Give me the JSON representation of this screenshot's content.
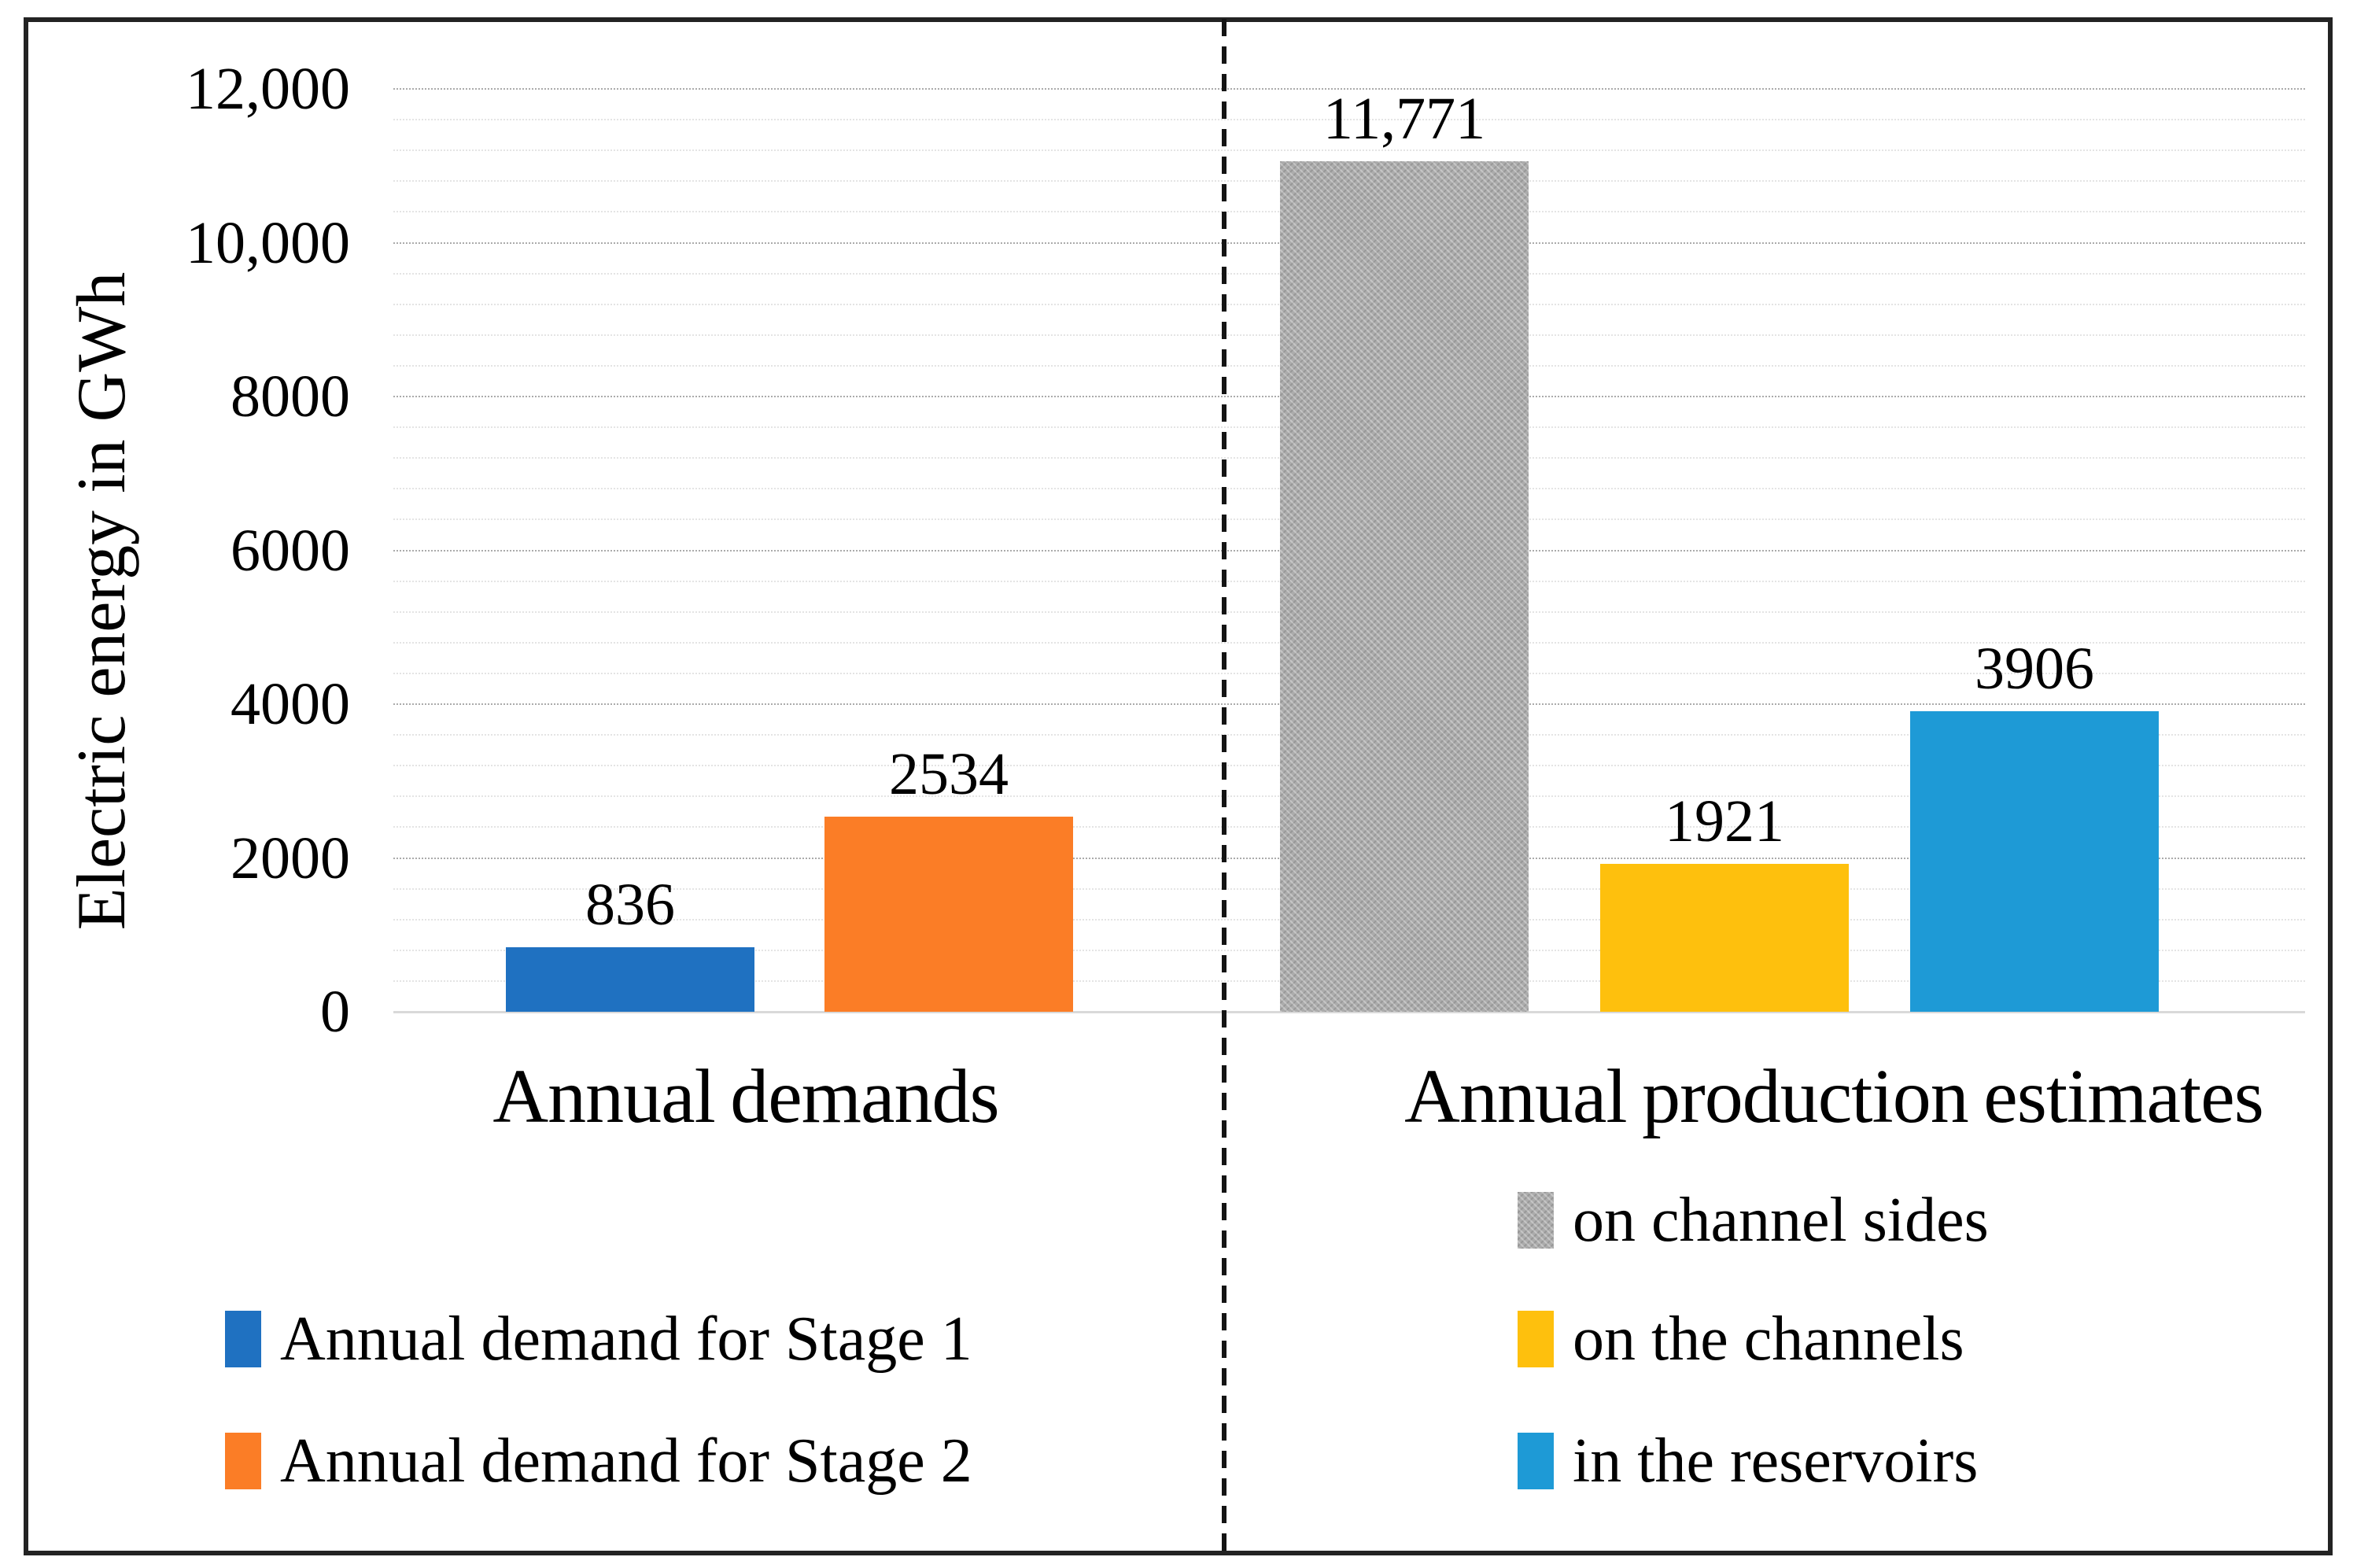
{
  "chart_data": {
    "type": "bar",
    "title": "",
    "ylabel": "Electric energy in GWh",
    "ylim": [
      0,
      12000
    ],
    "ytick_step": 2000,
    "yminor_step": 400,
    "grid": "dotted horizontal, major every 2000 with 4 minor lines between",
    "ytick_labels": [
      "12,000",
      "10,000",
      "8000",
      "6000",
      "4000",
      "2000",
      "0"
    ],
    "divider_style": "vertical dashed black line separating the two groups",
    "groups": [
      {
        "label": "Annual demands",
        "bars": [
          {
            "name": "Annual demand for Stage 1",
            "value": 836,
            "value_label": "836",
            "color": "#1F71C1",
            "pattern": "solid"
          },
          {
            "name": "Annual demand for Stage 2",
            "value": 2534,
            "value_label": "2534",
            "color": "#FB7D26",
            "pattern": "solid"
          }
        ]
      },
      {
        "label": "Annual production estimates",
        "bars": [
          {
            "name": "on channel sides",
            "value": 11771,
            "value_label": "11,771",
            "color": "#ACACAC",
            "pattern": "crosshatch"
          },
          {
            "name": "on the channels",
            "value": 1921,
            "value_label": "1921",
            "color": "#FEC00D",
            "pattern": "solid"
          },
          {
            "name": "in the reservoirs",
            "value": 3906,
            "value_label": "3906",
            "color": "#1E9AD6",
            "pattern": "solid"
          }
        ]
      }
    ],
    "legend": {
      "left_column": [
        "Annual demand for Stage 1",
        "Annual demand for Stage 2"
      ],
      "right_column": [
        "on channel sides",
        "on the channels",
        "in the reservoirs"
      ],
      "position": "below chart, two columns"
    }
  }
}
